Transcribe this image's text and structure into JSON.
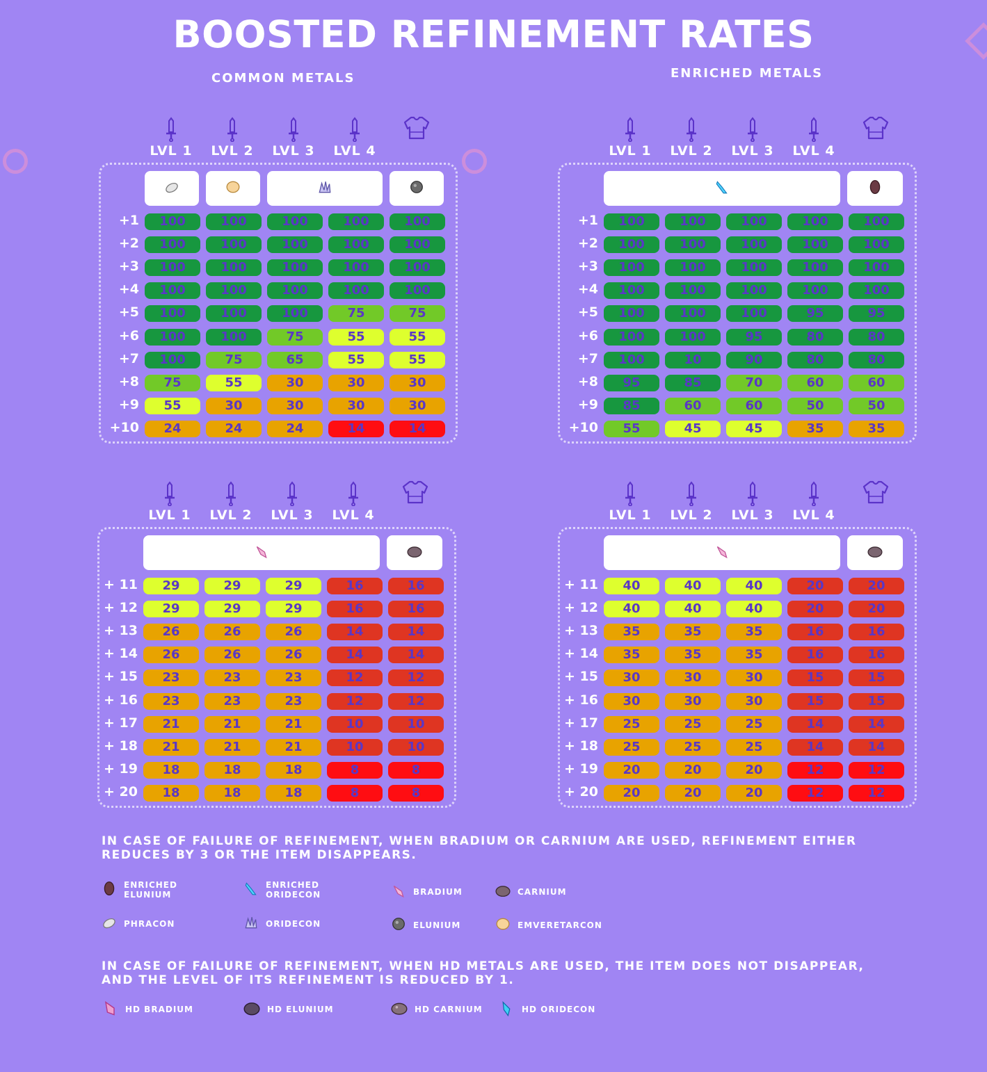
{
  "title": "BOOSTED REFINEMENT RATES",
  "subtitles": {
    "common": "COMMON METALS",
    "enriched": "ENRICHED METALS"
  },
  "level_labels": [
    "LVL 1",
    "LVL 2",
    "LVL 3",
    "LVL 4"
  ],
  "colors": {
    "100": "#17973f",
    "90s": "#17973f",
    "mid_green": "#72c928",
    "lime": "#deff2e",
    "orange": "#e8a300",
    "dark_red": "#df3522",
    "red": "#ff0d12"
  },
  "tables": [
    {
      "id": "common-low",
      "materials": [
        "phracon",
        "emveretarcon",
        "oridecon",
        "elunium"
      ],
      "rows": [
        {
          "label": "+1",
          "values": [
            "100",
            "100",
            "100",
            "100",
            "100"
          ],
          "tones": [
            "g",
            "g",
            "g",
            "g",
            "g"
          ]
        },
        {
          "label": "+2",
          "values": [
            "100",
            "100",
            "100",
            "100",
            "100"
          ],
          "tones": [
            "g",
            "g",
            "g",
            "g",
            "g"
          ]
        },
        {
          "label": "+3",
          "values": [
            "100",
            "100",
            "100",
            "100",
            "100"
          ],
          "tones": [
            "g",
            "g",
            "g",
            "g",
            "g"
          ]
        },
        {
          "label": "+4",
          "values": [
            "100",
            "100",
            "100",
            "100",
            "100"
          ],
          "tones": [
            "g",
            "g",
            "g",
            "g",
            "g"
          ]
        },
        {
          "label": "+5",
          "values": [
            "100",
            "100",
            "100",
            "75",
            "75"
          ],
          "tones": [
            "g",
            "g",
            "g",
            "m",
            "m"
          ]
        },
        {
          "label": "+6",
          "values": [
            "100",
            "100",
            "75",
            "55",
            "55"
          ],
          "tones": [
            "g",
            "g",
            "m",
            "l",
            "l"
          ]
        },
        {
          "label": "+7",
          "values": [
            "100",
            "75",
            "65",
            "55",
            "55"
          ],
          "tones": [
            "g",
            "m",
            "m",
            "l",
            "l"
          ]
        },
        {
          "label": "+8",
          "values": [
            "75",
            "55",
            "30",
            "30",
            "30"
          ],
          "tones": [
            "m",
            "l",
            "o",
            "o",
            "o"
          ]
        },
        {
          "label": "+9",
          "values": [
            "55",
            "30",
            "30",
            "30",
            "30"
          ],
          "tones": [
            "l",
            "o",
            "o",
            "o",
            "o"
          ]
        },
        {
          "label": "+10",
          "values": [
            "24",
            "24",
            "24",
            "14",
            "14"
          ],
          "tones": [
            "o",
            "o",
            "o",
            "r",
            "r"
          ]
        }
      ]
    },
    {
      "id": "enriched-low",
      "materials": [
        "enriched-oridecon",
        "enriched-elunium"
      ],
      "rows": [
        {
          "label": "+1",
          "values": [
            "100",
            "100",
            "100",
            "100",
            "100"
          ],
          "tones": [
            "g",
            "g",
            "g",
            "g",
            "g"
          ]
        },
        {
          "label": "+2",
          "values": [
            "100",
            "100",
            "100",
            "100",
            "100"
          ],
          "tones": [
            "g",
            "g",
            "g",
            "g",
            "g"
          ]
        },
        {
          "label": "+3",
          "values": [
            "100",
            "100",
            "100",
            "100",
            "100"
          ],
          "tones": [
            "g",
            "g",
            "g",
            "g",
            "g"
          ]
        },
        {
          "label": "+4",
          "values": [
            "100",
            "100",
            "100",
            "100",
            "100"
          ],
          "tones": [
            "g",
            "g",
            "g",
            "g",
            "g"
          ]
        },
        {
          "label": "+5",
          "values": [
            "100",
            "100",
            "100",
            "95",
            "95"
          ],
          "tones": [
            "g",
            "g",
            "g",
            "g",
            "g"
          ]
        },
        {
          "label": "+6",
          "values": [
            "100",
            "100",
            "95",
            "80",
            "80"
          ],
          "tones": [
            "g",
            "g",
            "g",
            "g",
            "g"
          ]
        },
        {
          "label": "+7",
          "values": [
            "100",
            "10",
            "90",
            "80",
            "80"
          ],
          "tones": [
            "g",
            "g",
            "g",
            "g",
            "g"
          ]
        },
        {
          "label": "+8",
          "values": [
            "95",
            "85",
            "70",
            "60",
            "60"
          ],
          "tones": [
            "g",
            "g",
            "m",
            "m",
            "m"
          ]
        },
        {
          "label": "+9",
          "values": [
            "85",
            "60",
            "60",
            "50",
            "50"
          ],
          "tones": [
            "g",
            "m",
            "m",
            "m",
            "m"
          ]
        },
        {
          "label": "+10",
          "values": [
            "55",
            "45",
            "45",
            "35",
            "35"
          ],
          "tones": [
            "m",
            "l",
            "l",
            "o",
            "o"
          ]
        }
      ]
    },
    {
      "id": "common-high",
      "materials": [
        "bradium",
        "carnium"
      ],
      "rows": [
        {
          "label": "+ 11",
          "values": [
            "29",
            "29",
            "29",
            "16",
            "16"
          ],
          "tones": [
            "l",
            "l",
            "l",
            "d",
            "d"
          ]
        },
        {
          "label": "+ 12",
          "values": [
            "29",
            "29",
            "29",
            "16",
            "16"
          ],
          "tones": [
            "l",
            "l",
            "l",
            "d",
            "d"
          ]
        },
        {
          "label": "+ 13",
          "values": [
            "26",
            "26",
            "26",
            "14",
            "14"
          ],
          "tones": [
            "o",
            "o",
            "o",
            "d",
            "d"
          ]
        },
        {
          "label": "+ 14",
          "values": [
            "26",
            "26",
            "26",
            "14",
            "14"
          ],
          "tones": [
            "o",
            "o",
            "o",
            "d",
            "d"
          ]
        },
        {
          "label": "+ 15",
          "values": [
            "23",
            "23",
            "23",
            "12",
            "12"
          ],
          "tones": [
            "o",
            "o",
            "o",
            "d",
            "d"
          ]
        },
        {
          "label": "+ 16",
          "values": [
            "23",
            "23",
            "23",
            "12",
            "12"
          ],
          "tones": [
            "o",
            "o",
            "o",
            "d",
            "d"
          ]
        },
        {
          "label": "+ 17",
          "values": [
            "21",
            "21",
            "21",
            "10",
            "10"
          ],
          "tones": [
            "o",
            "o",
            "o",
            "d",
            "d"
          ]
        },
        {
          "label": "+ 18",
          "values": [
            "21",
            "21",
            "21",
            "10",
            "10"
          ],
          "tones": [
            "o",
            "o",
            "o",
            "d",
            "d"
          ]
        },
        {
          "label": "+ 19",
          "values": [
            "18",
            "18",
            "18",
            "8",
            "8"
          ],
          "tones": [
            "o",
            "o",
            "o",
            "r",
            "r"
          ]
        },
        {
          "label": "+ 20",
          "values": [
            "18",
            "18",
            "18",
            "8",
            "8"
          ],
          "tones": [
            "o",
            "o",
            "o",
            "r",
            "r"
          ]
        }
      ]
    },
    {
      "id": "enriched-high",
      "materials": [
        "bradium",
        "carnium"
      ],
      "rows": [
        {
          "label": "+ 11",
          "values": [
            "40",
            "40",
            "40",
            "20",
            "20"
          ],
          "tones": [
            "l",
            "l",
            "l",
            "d",
            "d"
          ]
        },
        {
          "label": "+ 12",
          "values": [
            "40",
            "40",
            "40",
            "20",
            "20"
          ],
          "tones": [
            "l",
            "l",
            "l",
            "d",
            "d"
          ]
        },
        {
          "label": "+ 13",
          "values": [
            "35",
            "35",
            "35",
            "16",
            "16"
          ],
          "tones": [
            "o",
            "o",
            "o",
            "d",
            "d"
          ]
        },
        {
          "label": "+ 14",
          "values": [
            "35",
            "35",
            "35",
            "16",
            "16"
          ],
          "tones": [
            "o",
            "o",
            "o",
            "d",
            "d"
          ]
        },
        {
          "label": "+ 15",
          "values": [
            "30",
            "30",
            "30",
            "15",
            "15"
          ],
          "tones": [
            "o",
            "o",
            "o",
            "d",
            "d"
          ]
        },
        {
          "label": "+ 16",
          "values": [
            "30",
            "30",
            "30",
            "15",
            "15"
          ],
          "tones": [
            "o",
            "o",
            "o",
            "d",
            "d"
          ]
        },
        {
          "label": "+ 17",
          "values": [
            "25",
            "25",
            "25",
            "14",
            "14"
          ],
          "tones": [
            "o",
            "o",
            "o",
            "d",
            "d"
          ]
        },
        {
          "label": "+ 18",
          "values": [
            "25",
            "25",
            "25",
            "14",
            "14"
          ],
          "tones": [
            "o",
            "o",
            "o",
            "d",
            "d"
          ]
        },
        {
          "label": "+ 19",
          "values": [
            "20",
            "20",
            "20",
            "12",
            "12"
          ],
          "tones": [
            "o",
            "o",
            "o",
            "r",
            "r"
          ]
        },
        {
          "label": "+ 20",
          "values": [
            "20",
            "20",
            "20",
            "12",
            "12"
          ],
          "tones": [
            "o",
            "o",
            "o",
            "r",
            "r"
          ]
        }
      ]
    }
  ],
  "notes": {
    "failure_regular": "IN CASE OF FAILURE OF REFINEMENT, WHEN BRADIUM OR CARNIUM ARE USED, REFINEMENT EITHER REDUCES BY 3 OR THE ITEM DISAPPEARS.",
    "failure_hd": "IN CASE OF FAILURE OF REFINEMENT, WHEN HD METALS ARE USED, THE ITEM DOES NOT DISAPPEAR, AND THE LEVEL OF ITS REFINEMENT IS REDUCED BY 1."
  },
  "legend": [
    {
      "name": "ENRICHED ELUNIUM",
      "icon": "enriched-elunium-icon"
    },
    {
      "name": "ENRICHED ORIDECON",
      "icon": "enriched-oridecon-icon"
    },
    {
      "name": "BRADIUM",
      "icon": "bradium-icon"
    },
    {
      "name": "CARNIUM",
      "icon": "carnium-icon"
    },
    {
      "name": "PHRACON",
      "icon": "phracon-icon"
    },
    {
      "name": "ORIDECON",
      "icon": "oridecon-icon"
    },
    {
      "name": "ELUNIUM",
      "icon": "elunium-icon"
    },
    {
      "name": "EMVERETARCON",
      "icon": "emveretarcon-icon"
    }
  ],
  "hd_legend": [
    {
      "name": "HD BRADIUM",
      "icon": "hd-bradium-icon"
    },
    {
      "name": "HD ELUNIUM",
      "icon": "hd-elunium-icon"
    },
    {
      "name": "HD CARNIUM",
      "icon": "hd-carnium-icon"
    },
    {
      "name": "HD ORIDECON",
      "icon": "hd-oridecon-icon"
    }
  ]
}
